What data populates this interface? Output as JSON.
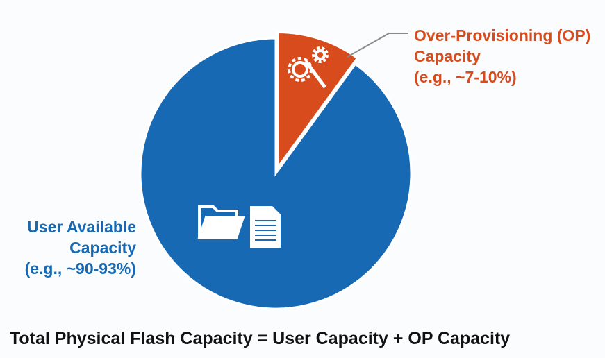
{
  "chart_data": {
    "type": "pie",
    "categories": [
      "User Available Capacity",
      "Over-Provisioning (OP) Capacity"
    ],
    "notes": [
      "(e.g., ~90-93%)",
      "(e.g., ~7-10%)"
    ],
    "values": [
      90,
      10
    ],
    "colors": [
      "#1769b3",
      "#d84b1c"
    ],
    "caption": "Total Physical Flash Capacity = User Capacity + OP Capacity"
  }
}
